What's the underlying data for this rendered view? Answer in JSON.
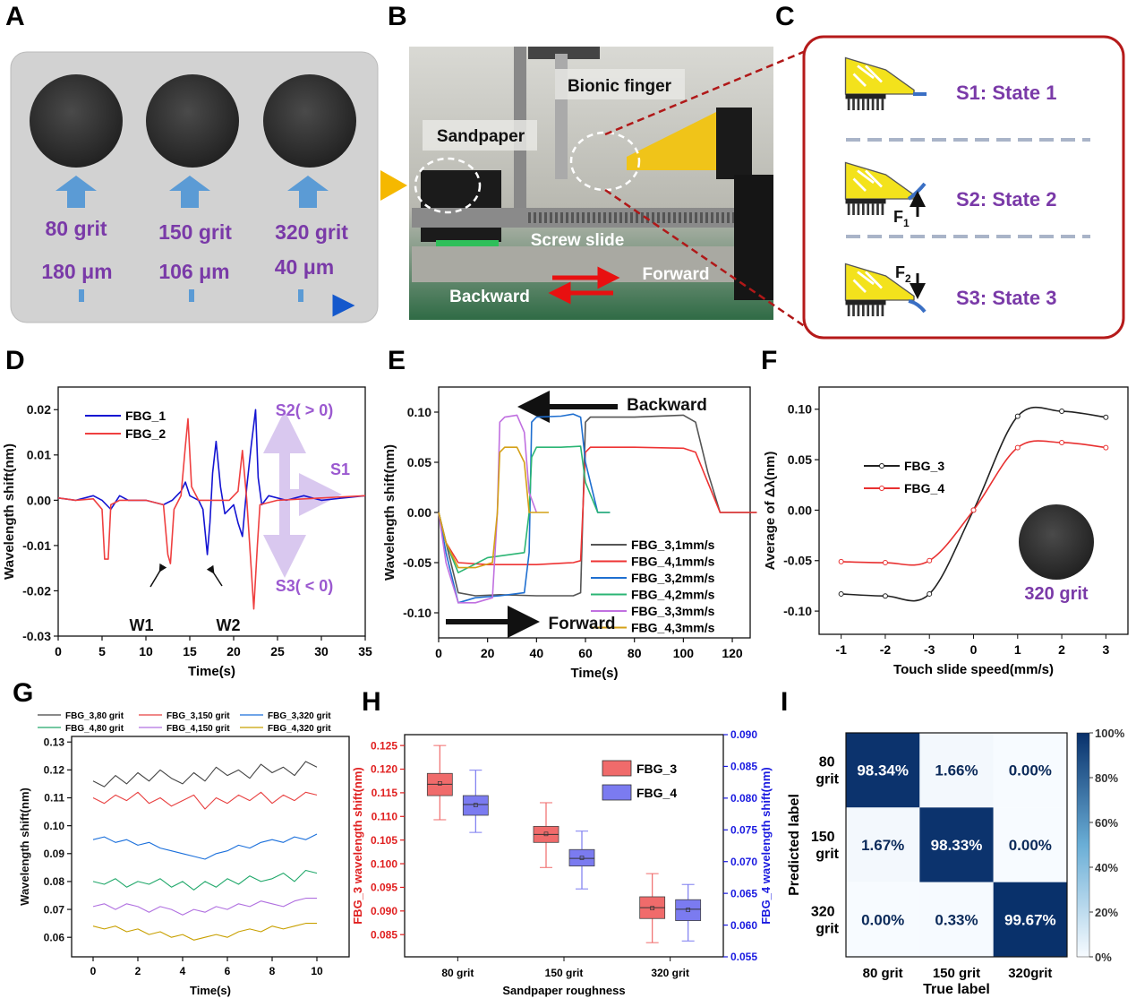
{
  "panel_labels": [
    "A",
    "B",
    "C",
    "D",
    "E",
    "F",
    "G",
    "H",
    "I"
  ],
  "panel_a": {
    "grits": [
      "80 grit",
      "150 grit",
      "320 grit"
    ],
    "sizes": [
      "180 μm",
      "106 μm",
      "40 μm"
    ]
  },
  "panel_b": {
    "labels": [
      "Bionic finger",
      "Sandpaper",
      "Screw slide",
      "Forward",
      "Backward"
    ]
  },
  "panel_c": {
    "states": [
      "S1: State 1",
      "S2: State 2",
      "S3: State 3"
    ],
    "forces": [
      {
        "symbol": "F",
        "subscript": "1"
      },
      {
        "symbol": "F",
        "subscript": "2"
      }
    ]
  },
  "chart_data": [
    {
      "type": "line",
      "xlabel": "Time(s)",
      "ylabel": "Wavelength shift(nm)",
      "xlim": [
        0,
        35
      ],
      "xticks": [
        0,
        5,
        10,
        15,
        20,
        25,
        30,
        35
      ],
      "ylim": [
        -0.03,
        0.025
      ],
      "yticks": [
        -0.03,
        -0.02,
        -0.01,
        {
          "value": 0,
          "label": "0.00"
        },
        0.01,
        0.02
      ],
      "legend": "upper left",
      "annotations": [
        "W1",
        "W2",
        "S2( > 0)",
        "S1",
        "S3( < 0)"
      ],
      "series": [
        {
          "name": "FBG_1",
          "color": "#1414d2",
          "x": [
            0,
            2,
            4,
            5,
            6,
            7,
            8,
            10,
            12,
            13,
            14,
            14.5,
            15,
            16,
            16.5,
            17,
            17.3,
            17.6,
            18,
            18.5,
            19,
            20,
            20.5,
            21,
            21.5,
            22,
            22.5,
            22.8,
            23.2,
            24,
            26,
            28,
            30,
            35
          ],
          "values": [
            0.0005,
            0,
            0.001,
            0,
            -0.002,
            0.001,
            0,
            0,
            -0.001,
            0,
            0.002,
            0.004,
            0.001,
            0,
            -0.002,
            -0.012,
            -0.005,
            0.006,
            0.013,
            0.003,
            -0.003,
            -0.001,
            -0.005,
            -0.008,
            0.003,
            0.012,
            0.02,
            0.005,
            -0.001,
            0.001,
            0,
            0.001,
            0,
            0.001
          ]
        },
        {
          "name": "FBG_2",
          "color": "#ef4040",
          "x": [
            0,
            2,
            4,
            5,
            5.3,
            5.7,
            6,
            7,
            10,
            12,
            12.5,
            12.8,
            13.2,
            14,
            14.5,
            14.8,
            15.2,
            16,
            18,
            19.5,
            20.5,
            21,
            21.5,
            22,
            22.3,
            22.7,
            23,
            25,
            30,
            35
          ],
          "values": [
            0.0005,
            0,
            0.0003,
            -0.002,
            -0.013,
            -0.013,
            -0.001,
            0,
            0,
            -0.001,
            -0.012,
            -0.014,
            -0.002,
            0.001,
            0.012,
            0.018,
            0.003,
            0,
            0,
            0,
            0.002,
            0.011,
            0,
            -0.015,
            -0.024,
            -0.01,
            -0.001,
            0,
            0.0005,
            0.001
          ]
        }
      ]
    },
    {
      "type": "line",
      "xlabel": "Time(s)",
      "ylabel": "Wavelength shift(nm)",
      "xlim": [
        0,
        127.3
      ],
      "xticks": [
        0,
        20,
        40,
        60,
        80,
        100,
        120
      ],
      "ylim": [
        -0.125,
        0.125
      ],
      "yticks": [
        {
          "value": -0.1,
          "label": "-0.10"
        },
        -0.05,
        {
          "value": 0,
          "label": "0.00"
        },
        0.05,
        {
          "value": 0.1,
          "label": "0.10"
        }
      ],
      "legend": "lower right",
      "annotations": [
        "Backward",
        "Forward"
      ],
      "series": [
        {
          "name": "FBG_3,1mm/s",
          "color": "#555555",
          "x": [
            0,
            3,
            8,
            15,
            25,
            40,
            55,
            58,
            60,
            62,
            80,
            100,
            105,
            110,
            115,
            130
          ],
          "values": [
            0,
            -0.03,
            -0.08,
            -0.083,
            -0.082,
            -0.083,
            -0.083,
            -0.08,
            0.09,
            0.095,
            0.095,
            0.097,
            0.09,
            0.04,
            0,
            0
          ]
        },
        {
          "name": "FBG_4,1mm/s",
          "color": "#ee3333",
          "x": [
            0,
            3,
            8,
            20,
            40,
            55,
            58,
            60,
            62,
            80,
            100,
            105,
            110,
            115,
            130
          ],
          "values": [
            0,
            -0.03,
            -0.05,
            -0.052,
            -0.052,
            -0.05,
            -0.048,
            0.06,
            0.065,
            0.065,
            0.064,
            0.06,
            0.03,
            0,
            0
          ]
        },
        {
          "name": "FBG_3,2mm/s",
          "color": "#1f6fd0",
          "x": [
            0,
            3,
            8,
            15,
            25,
            35,
            37,
            38,
            40,
            50,
            55,
            58,
            60,
            65,
            70
          ],
          "values": [
            0,
            -0.04,
            -0.09,
            -0.085,
            -0.083,
            -0.08,
            -0.04,
            0.09,
            0.095,
            0.096,
            0.098,
            0.095,
            0.05,
            0,
            0
          ]
        },
        {
          "name": "FBG_4,2mm/s",
          "color": "#2bb574",
          "x": [
            0,
            3,
            8,
            20,
            35,
            37,
            38,
            40,
            50,
            58,
            60,
            65,
            70
          ],
          "values": [
            0,
            -0.03,
            -0.06,
            -0.045,
            -0.04,
            0,
            0.055,
            0.065,
            0.065,
            0.066,
            0.03,
            0,
            0
          ]
        },
        {
          "name": "FBG_3,3mm/s",
          "color": "#c070e0",
          "x": [
            0,
            3,
            8,
            15,
            22,
            24,
            25,
            27,
            32,
            35,
            37,
            40
          ],
          "values": [
            0,
            -0.05,
            -0.09,
            -0.09,
            -0.085,
            0,
            0.09,
            0.095,
            0.097,
            0.08,
            0.02,
            0
          ]
        },
        {
          "name": "FBG_4,3mm/s",
          "color": "#d4a017",
          "x": [
            0,
            3,
            8,
            15,
            22,
            24,
            25,
            27,
            32,
            35,
            37,
            40,
            45
          ],
          "values": [
            0,
            -0.03,
            -0.055,
            -0.055,
            -0.05,
            0,
            0.06,
            0.065,
            0.065,
            0.05,
            0,
            0,
            0
          ]
        }
      ]
    },
    {
      "type": "line",
      "smooth": true,
      "markers": true,
      "xlabel": "Touch slide speed(mm/s)",
      "ylabel": "Average of Δλ(nm)",
      "categories": [
        "-1",
        "-2",
        "-3",
        "0",
        "1",
        "2",
        "3"
      ],
      "ylim": [
        -0.123,
        0.122
      ],
      "yticks": [
        {
          "value": -0.1,
          "label": "-0.10"
        },
        -0.05,
        {
          "value": 0,
          "label": "0.00"
        },
        0.05,
        {
          "value": 0.1,
          "label": "0.10"
        }
      ],
      "legend": "center left",
      "annotations": [
        "320 grit"
      ],
      "series": [
        {
          "name": "FBG_3",
          "color": "#222222",
          "values": [
            -0.083,
            -0.085,
            -0.083,
            0,
            0.093,
            0.098,
            0.092
          ]
        },
        {
          "name": "FBG_4",
          "color": "#e83030",
          "values": [
            -0.051,
            -0.052,
            -0.05,
            0,
            0.062,
            0.067,
            0.062
          ]
        }
      ]
    },
    {
      "type": "line",
      "xlabel": "Time(s)",
      "ylabel": "Wavelength shift(nm)",
      "x": [
        0,
        0.5,
        1,
        1.5,
        2,
        2.5,
        3,
        3.5,
        4,
        4.5,
        5,
        5.5,
        6,
        6.5,
        7,
        7.5,
        8,
        8.5,
        9,
        9.5,
        10
      ],
      "xlim": [
        -0.96,
        11.44
      ],
      "xticks": [
        0,
        2,
        4,
        6,
        8,
        10
      ],
      "ylim": [
        0.053,
        0.132
      ],
      "yticks": [
        0.06,
        0.07,
        0.08,
        0.09,
        {
          "value": 0.1,
          "label": "0.10"
        },
        0.11,
        0.12,
        0.13
      ],
      "legend": "top",
      "series": [
        {
          "name": "FBG_3,80 grit",
          "color": "#444444",
          "values": [
            0.116,
            0.114,
            0.118,
            0.115,
            0.119,
            0.116,
            0.12,
            0.117,
            0.115,
            0.119,
            0.116,
            0.121,
            0.118,
            0.12,
            0.117,
            0.122,
            0.119,
            0.121,
            0.118,
            0.123,
            0.121
          ]
        },
        {
          "name": "FBG_3,150 grit",
          "color": "#e84040",
          "values": [
            0.11,
            0.108,
            0.111,
            0.109,
            0.112,
            0.108,
            0.11,
            0.107,
            0.109,
            0.111,
            0.106,
            0.11,
            0.108,
            0.111,
            0.109,
            0.112,
            0.108,
            0.111,
            0.109,
            0.112,
            0.111
          ]
        },
        {
          "name": "FBG_3,320 grit",
          "color": "#1a6fdb",
          "values": [
            0.095,
            0.096,
            0.094,
            0.095,
            0.093,
            0.094,
            0.092,
            0.091,
            0.09,
            0.089,
            0.088,
            0.09,
            0.091,
            0.093,
            0.092,
            0.094,
            0.095,
            0.094,
            0.096,
            0.095,
            0.097
          ]
        },
        {
          "name": "FBG_4,80 grit",
          "color": "#20a86a",
          "values": [
            0.08,
            0.079,
            0.081,
            0.078,
            0.08,
            0.079,
            0.081,
            0.078,
            0.08,
            0.077,
            0.08,
            0.078,
            0.081,
            0.079,
            0.082,
            0.08,
            0.081,
            0.083,
            0.08,
            0.084,
            0.083
          ]
        },
        {
          "name": "FBG_4,150 grit",
          "color": "#b070e0",
          "values": [
            0.071,
            0.072,
            0.07,
            0.072,
            0.071,
            0.069,
            0.071,
            0.07,
            0.068,
            0.07,
            0.069,
            0.071,
            0.07,
            0.072,
            0.071,
            0.073,
            0.072,
            0.071,
            0.073,
            0.074,
            0.074
          ]
        },
        {
          "name": "FBG_4,320 grit",
          "color": "#c8a000",
          "values": [
            0.064,
            0.063,
            0.064,
            0.062,
            0.063,
            0.061,
            0.062,
            0.06,
            0.061,
            0.059,
            0.06,
            0.061,
            0.06,
            0.062,
            0.063,
            0.062,
            0.064,
            0.063,
            0.064,
            0.065,
            0.065
          ]
        }
      ]
    },
    {
      "type": "box",
      "xlabel": "Sandpaper roughness",
      "ylabel": "FBG_3 wavelength shift(nm)",
      "y2label": "FBG_4 wavelength shift(nm)",
      "categories": [
        "80 grit",
        "150 grit",
        "320 grit"
      ],
      "ylim": [
        0.0803,
        0.1273
      ],
      "yticks": [
        0.085,
        {
          "value": 0.09,
          "label": "0.090"
        },
        0.095,
        {
          "value": 0.1,
          "label": "0.100"
        },
        0.105,
        {
          "value": 0.11,
          "label": "0.110"
        },
        0.115,
        {
          "value": 0.12,
          "label": "0.120"
        },
        0.125
      ],
      "y2lim": [
        0.055,
        0.09
      ],
      "y2ticks": [
        0.055,
        {
          "value": 0.06,
          "label": "0.060"
        },
        0.065,
        {
          "value": 0.07,
          "label": "0.070"
        },
        0.075,
        {
          "value": 0.08,
          "label": "0.080"
        },
        0.085,
        {
          "value": 0.09,
          "label": "0.090"
        }
      ],
      "legend": "upper right",
      "series": [
        {
          "name": "FBG_3",
          "color": "#f06b6b",
          "axis": "y",
          "stats": [
            {
              "min": 0.1093,
              "q1": 0.1144,
              "median": 0.1168,
              "q3": 0.1191,
              "max": 0.125,
              "mean": 0.117
            },
            {
              "min": 0.0992,
              "q1": 0.1045,
              "median": 0.1062,
              "q3": 0.1079,
              "max": 0.1129,
              "mean": 0.1063
            },
            {
              "min": 0.0833,
              "q1": 0.0884,
              "median": 0.0907,
              "q3": 0.093,
              "max": 0.0979,
              "mean": 0.0906
            }
          ]
        },
        {
          "name": "FBG_4",
          "color": "#7b7bf0",
          "axis": "y2",
          "stats": [
            {
              "min": 0.0746,
              "q1": 0.0773,
              "median": 0.079,
              "q3": 0.0804,
              "max": 0.0844,
              "mean": 0.0789
            },
            {
              "min": 0.0657,
              "q1": 0.0693,
              "median": 0.0705,
              "q3": 0.0719,
              "max": 0.0748,
              "mean": 0.0706
            },
            {
              "min": 0.0575,
              "q1": 0.0607,
              "median": 0.0625,
              "q3": 0.064,
              "max": 0.0664,
              "mean": 0.0624
            }
          ]
        }
      ]
    },
    {
      "type": "heatmap",
      "xlabel": "True label",
      "ylabel": "Predicted label",
      "categories": [
        "80 grit",
        "150 grit",
        "320grit"
      ],
      "ycategories": [
        "80 grit",
        "150 grit",
        "320 grit"
      ],
      "values": [
        [
          98.34,
          1.66,
          0
        ],
        [
          1.67,
          98.33,
          0
        ],
        [
          0,
          0.33,
          99.67
        ]
      ],
      "value_labels": [
        [
          "98.34%",
          "1.66%",
          "0.00%"
        ],
        [
          "1.67%",
          "98.33%",
          "0.00%"
        ],
        [
          "0.00%",
          "0.33%",
          "99.67%"
        ]
      ],
      "colorbar": {
        "lim": [
          0,
          100
        ],
        "ticks": [
          {
            "value": 0,
            "label": "0%"
          },
          {
            "value": 20,
            "label": "20%"
          },
          {
            "value": 40,
            "label": "40%"
          },
          {
            "value": 60,
            "label": "60%"
          },
          {
            "value": 80,
            "label": "80%"
          },
          {
            "value": 100,
            "label": "100%"
          }
        ]
      }
    }
  ]
}
